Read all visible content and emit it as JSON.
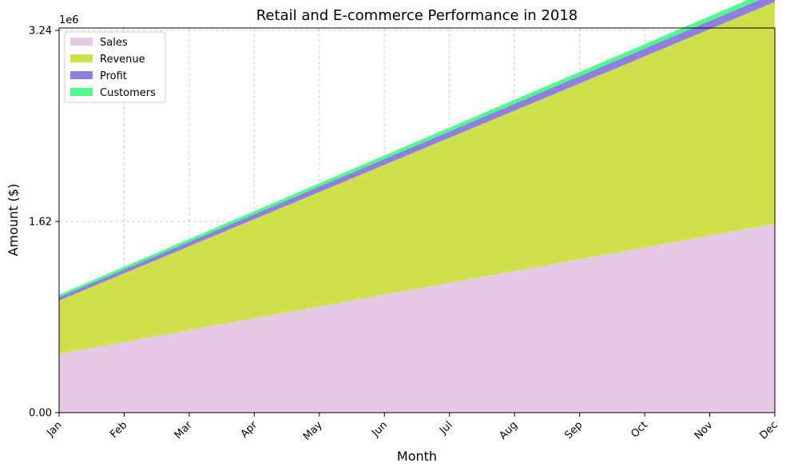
{
  "chart_data": {
    "type": "area",
    "stacked": true,
    "title": "Retail and E-commerce Performance in 2018",
    "xlabel": "Month",
    "ylabel": "Amount ($)",
    "y_multiplier_label": "1e6",
    "categories": [
      "Jan",
      "Feb",
      "Mar",
      "Apr",
      "May",
      "Jun",
      "Jul",
      "Aug",
      "Sep",
      "Oct",
      "Nov",
      "Dec"
    ],
    "ylim": [
      0,
      3.26
    ],
    "yticks": [
      0,
      1.62,
      3.24
    ],
    "ytick_labels": [
      "0.00",
      "1.62",
      "3.24"
    ],
    "grid": true,
    "legend_position": "top-left",
    "series": [
      {
        "name": "Sales",
        "color": "#e6c9e4",
        "values": [
          0.5,
          0.6,
          0.7,
          0.8,
          0.9,
          1.0,
          1.1,
          1.2,
          1.3,
          1.4,
          1.5,
          1.6
        ]
      },
      {
        "name": "Revenue",
        "color": "#cfe04c",
        "values": [
          0.45,
          0.58,
          0.71,
          0.84,
          0.97,
          1.1,
          1.23,
          1.36,
          1.49,
          1.62,
          1.75,
          1.88
        ]
      },
      {
        "name": "Profit",
        "color": "#8d80df",
        "values": [
          0.03,
          0.034,
          0.038,
          0.042,
          0.046,
          0.05,
          0.054,
          0.058,
          0.062,
          0.066,
          0.07,
          0.074
        ]
      },
      {
        "name": "Customers",
        "color": "#50fb8e",
        "values": [
          0.02,
          0.022,
          0.024,
          0.026,
          0.028,
          0.03,
          0.032,
          0.034,
          0.036,
          0.038,
          0.04,
          0.042
        ]
      }
    ]
  }
}
